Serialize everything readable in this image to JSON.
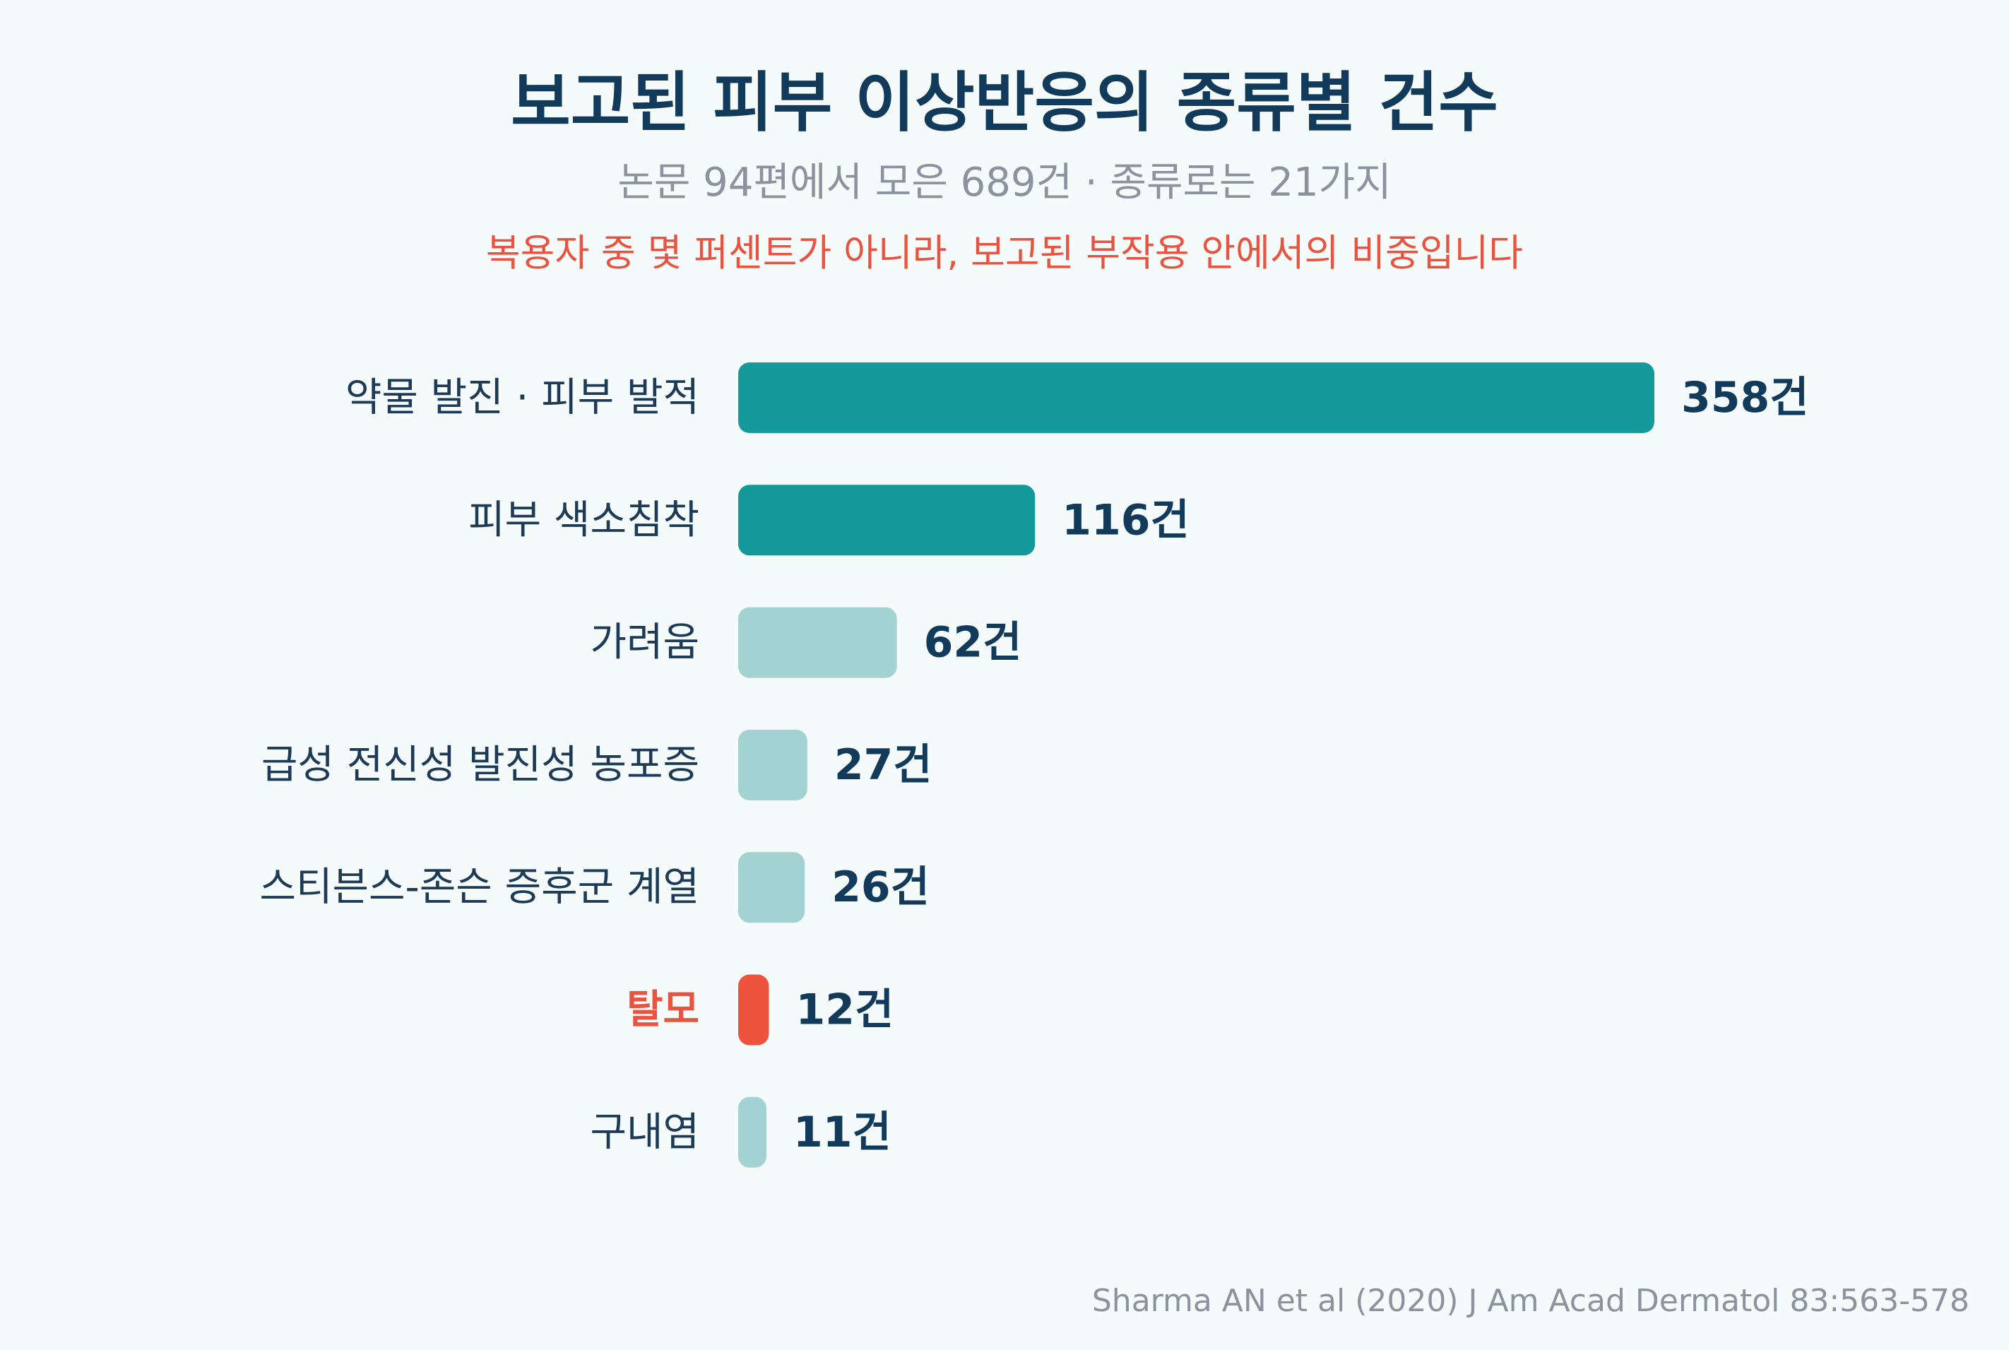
{
  "header": {
    "title": "보고된 피부 이상반응의 종류별 건수",
    "subtitle": "논문 94편에서 모은 689건 · 종류로는 21가지",
    "note": "복용자 중 몇 퍼센트가 아니라, 보고된 부작용 안에서의 비중입니다"
  },
  "colors": {
    "title": "#123a5a",
    "subtitle": "#8a939e",
    "accent": "#e8543f",
    "bar_dark": "#159a9c",
    "bar_light": "#a3d2d2",
    "bar_highlight": "#ee543d",
    "label": "#1d3b56",
    "value_label": "#123a5a"
  },
  "chart_data": {
    "type": "bar",
    "orientation": "horizontal",
    "unit_suffix": "건",
    "categories": [
      "약물 발진 · 피부 발적",
      "피부 색소침착",
      "가려움",
      "급성 전신성 발진성 농포증",
      "스티븐스-존슨 증후군 계열",
      "탈모",
      "구내염"
    ],
    "values": [
      358,
      116,
      62,
      27,
      26,
      12,
      11
    ],
    "value_labels": [
      "358건",
      "116건",
      "62건",
      "27건",
      "26건",
      "12건",
      "11건"
    ],
    "bar_styles": [
      "dark",
      "dark",
      "light",
      "light",
      "light",
      "highlight",
      "light"
    ],
    "xlim": [
      0,
      358
    ],
    "grid": false,
    "legend": "none"
  },
  "footer": {
    "source": "Sharma AN et al (2020) J Am Acad Dermatol 83:563-578"
  }
}
